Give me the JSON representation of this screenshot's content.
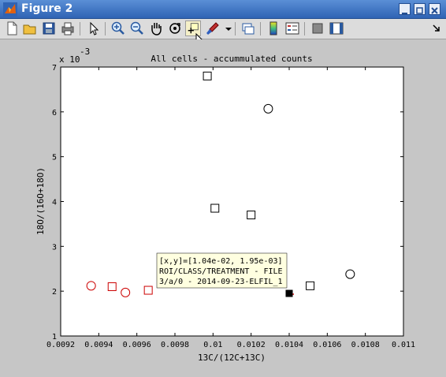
{
  "window": {
    "title": "Figure 2"
  },
  "toolbar": {
    "items": [
      "new-file",
      "open-file",
      "save",
      "print",
      "pointer",
      "zoom-in",
      "zoom-out",
      "pan",
      "rotate-3d",
      "data-cursor",
      "brush",
      "link-plot",
      "print-preview",
      "insert-colorbar",
      "insert-legend",
      "hide-plot-tools",
      "show-plot-tools"
    ]
  },
  "axes": {
    "title": "All cells - accummulated counts",
    "xlabel": "13C/(12C+13C)",
    "ylabel": "18O/(16O+18O)",
    "y_exponent_base": "x 10",
    "y_exponent_power": "-3"
  },
  "tooltip": {
    "line1": "[x,y]=[1.04e-02, 1.95e-03]",
    "line2": "ROI/CLASS/TREATMENT - FILE",
    "line3": "3/a/0 - 2014-09-23-ELFIL_1"
  },
  "colors": {
    "black": "#000000",
    "red": "#cc0000",
    "tooltip_bg": "#ffffe0"
  },
  "chart_data": {
    "type": "scatter",
    "title": "All cells - accummulated counts",
    "xlabel": "13C/(12C+13C)",
    "ylabel": "18O/(16O+18O)",
    "xlim": [
      0.0092,
      0.011
    ],
    "ylim": [
      1,
      7
    ],
    "y_scale_note": "x 10^-3",
    "xticks": [
      "0.0092",
      "0.0094",
      "0.0096",
      "0.0098",
      "0.01",
      "0.0102",
      "0.0104",
      "0.0106",
      "0.0108",
      "0.011"
    ],
    "yticks": [
      "1",
      "2",
      "3",
      "4",
      "5",
      "6",
      "7"
    ],
    "series": [
      {
        "marker": "square",
        "color": "#000000",
        "x": [
          0.00997,
          0.01001,
          0.0102,
          0.01051
        ],
        "y": [
          6.8,
          3.85,
          3.7,
          2.12
        ]
      },
      {
        "marker": "circle",
        "color": "#000000",
        "x": [
          0.01029,
          0.01072
        ],
        "y": [
          6.07,
          2.38
        ]
      },
      {
        "marker": "square",
        "color": "#cc0000",
        "x": [
          0.00947,
          0.00966
        ],
        "y": [
          2.1,
          2.02
        ]
      },
      {
        "marker": "circle",
        "color": "#cc0000",
        "x": [
          0.00936,
          0.00954
        ],
        "y": [
          2.12,
          1.97
        ]
      },
      {
        "marker": "square-filled",
        "color": "#000000",
        "x": [
          0.0104
        ],
        "y": [
          1.95
        ]
      }
    ]
  }
}
